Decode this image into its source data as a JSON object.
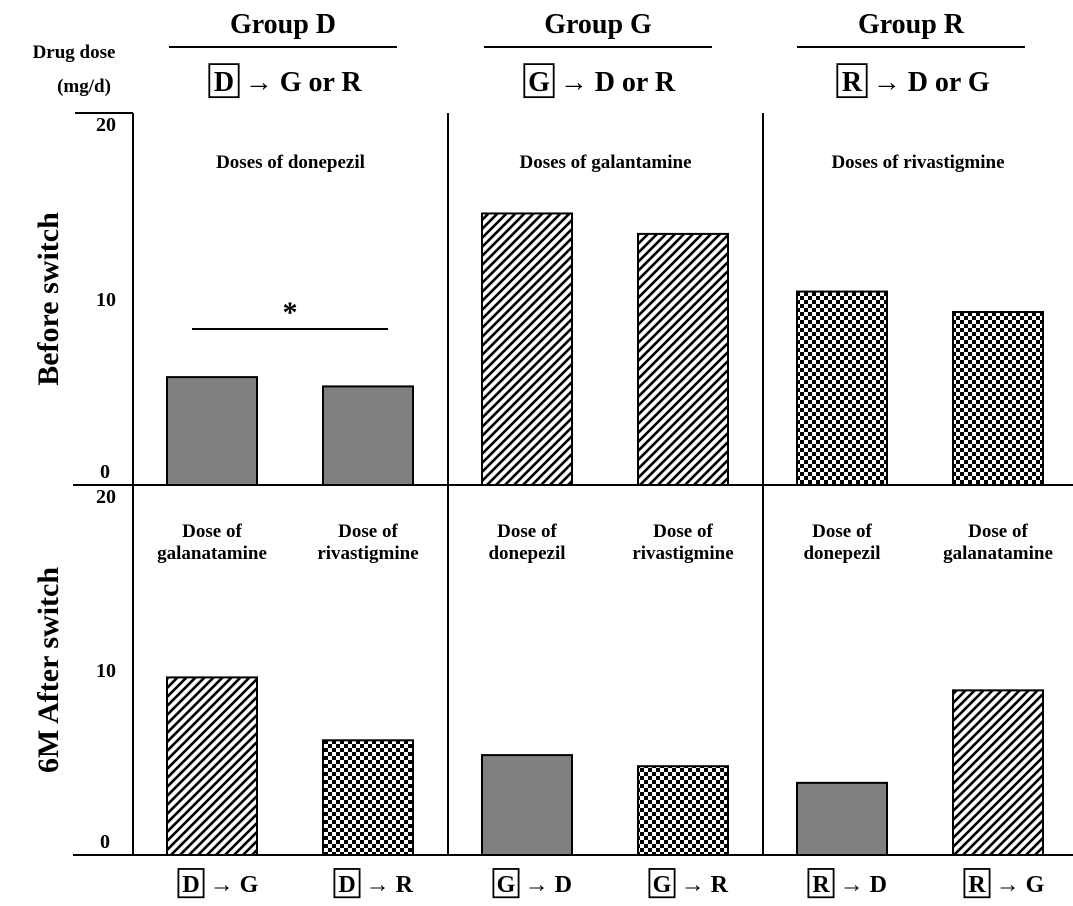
{
  "chart_data": {
    "type": "bar",
    "y_axis_title": "Drug dose",
    "y_axis_unit": "(mg/d)",
    "ylim": [
      0,
      20
    ],
    "yticks": [
      0,
      10,
      20
    ],
    "groups": [
      {
        "title": "Group D",
        "box": "D",
        "switch": "→ G or R"
      },
      {
        "title": "Group G",
        "box": "G",
        "switch": "→ D or R"
      },
      {
        "title": "Group R",
        "box": "R",
        "switch": "→ D or G"
      }
    ],
    "rows": [
      {
        "label": "Before switch",
        "panels": [
          {
            "title": "Doses of donepezil",
            "annotation": "*",
            "bars": [
              {
                "value": 5.8,
                "drug": "donepezil"
              },
              {
                "value": 5.3,
                "drug": "donepezil"
              }
            ]
          },
          {
            "title": "Doses of galantamine",
            "bars": [
              {
                "value": 14.6,
                "drug": "galantamine"
              },
              {
                "value": 13.5,
                "drug": "galantamine"
              }
            ]
          },
          {
            "title": "Doses of rivastigmine",
            "bars": [
              {
                "value": 10.4,
                "drug": "rivastigmine"
              },
              {
                "value": 9.3,
                "drug": "rivastigmine"
              }
            ]
          }
        ]
      },
      {
        "label": "6M After switch",
        "panels": [
          {
            "bars": [
              {
                "value": 9.6,
                "drug": "galantamine",
                "label": [
                  "Dose of",
                  "galanatamine"
                ]
              },
              {
                "value": 6.2,
                "drug": "rivastigmine",
                "label": [
                  "Dose of",
                  "rivastigmine"
                ]
              }
            ]
          },
          {
            "bars": [
              {
                "value": 5.4,
                "drug": "donepezil",
                "label": [
                  "Dose of",
                  "donepezil"
                ]
              },
              {
                "value": 4.8,
                "drug": "rivastigmine",
                "label": [
                  "Dose of",
                  "rivastigmine"
                ]
              }
            ]
          },
          {
            "bars": [
              {
                "value": 3.9,
                "drug": "donepezil",
                "label": [
                  "Dose of",
                  "donepezil"
                ]
              },
              {
                "value": 8.9,
                "drug": "galantamine",
                "label": [
                  "Dose of",
                  "galanatamine"
                ]
              }
            ]
          }
        ]
      }
    ],
    "x_categories": [
      {
        "box": "D",
        "arrow": "→ G"
      },
      {
        "box": "D",
        "arrow": "→ R"
      },
      {
        "box": "G",
        "arrow": "→ D"
      },
      {
        "box": "G",
        "arrow": "→ R"
      },
      {
        "box": "R",
        "arrow": "→ D"
      },
      {
        "box": "R",
        "arrow": "→ G"
      }
    ],
    "drug_fills": {
      "donepezil": "solid gray #808080",
      "galantamine": "diagonal hatch",
      "rivastigmine": "checkerboard"
    }
  }
}
